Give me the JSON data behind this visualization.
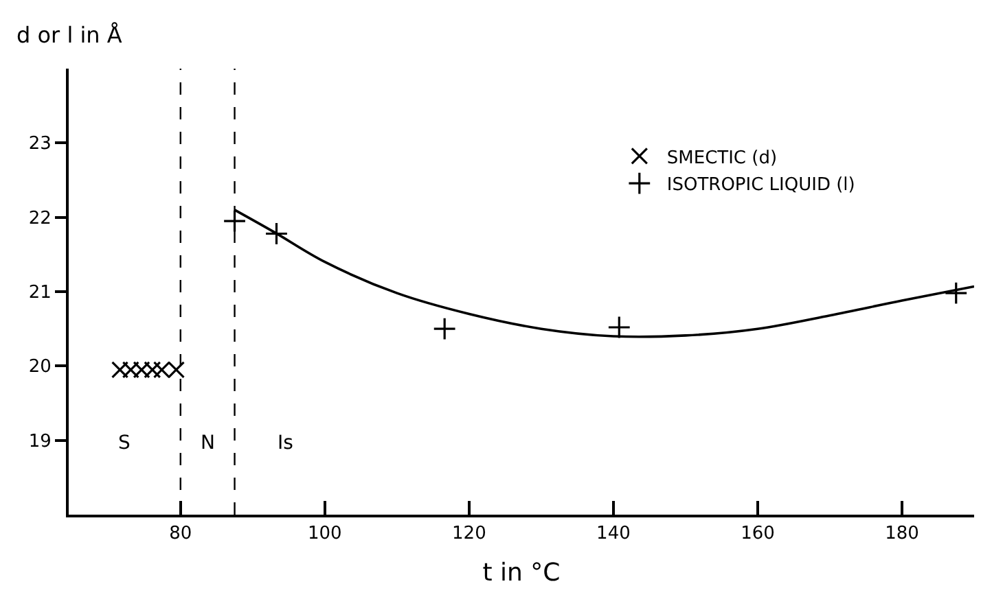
{
  "chart_data": {
    "type": "scatter",
    "xlabel": "t in °C",
    "ylabel": "d or l in Å",
    "xlim": [
      64.5,
      190
    ],
    "xticks": [
      80,
      100,
      120,
      140,
      160,
      180
    ],
    "ylim": [
      18,
      24
    ],
    "yticks": [
      19,
      20,
      21,
      22,
      23
    ],
    "legend": "top right",
    "series": [
      {
        "name": "SMECTIC (d)",
        "color": "#000000",
        "marker": "cross",
        "x": [
          71.6,
          73.1,
          74.6,
          76.1,
          77.4,
          79.4
        ],
        "values": [
          19.95,
          19.95,
          19.95,
          19.95,
          19.95,
          19.95
        ]
      },
      {
        "name": "ISOTROPIC LIQUID (l)",
        "color": "#000000",
        "marker": "plus",
        "x": [
          87.5,
          93.3,
          116.6,
          140.8,
          187.5
        ],
        "values": [
          21.95,
          21.78,
          20.5,
          20.52,
          20.98
        ]
      },
      {
        "type": "line",
        "color": "#000000",
        "marker": "none",
        "line_style": "solid",
        "x": [
          87.5,
          93,
          100,
          110,
          120,
          130,
          140,
          150,
          160,
          170,
          180,
          190
        ],
        "values": [
          22.1,
          21.8,
          21.4,
          20.98,
          20.7,
          20.5,
          20.4,
          20.41,
          20.5,
          20.68,
          20.88,
          21.07
        ]
      }
    ],
    "ref_lines": [
      {
        "axis": "x",
        "value": 80,
        "line_style": "dashed",
        "color": "#000000"
      },
      {
        "axis": "x",
        "value": 87.5,
        "line_style": "dashed",
        "color": "#000000"
      }
    ],
    "annotations": [
      "S",
      "N",
      "Is"
    ]
  }
}
